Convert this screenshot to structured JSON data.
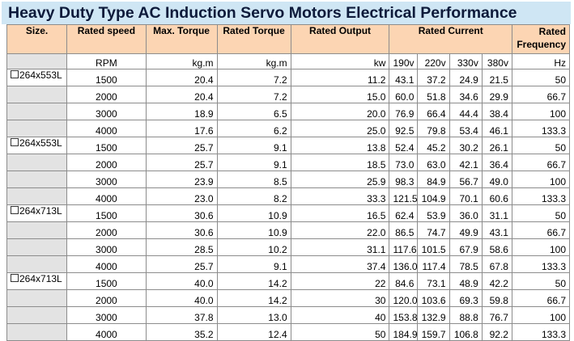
{
  "title": "Heavy Duty Type AC Induction Servo Motors Electrical Performance",
  "headers": {
    "size": "Size.",
    "speed": "Rated speed",
    "max_torque": "Max. Torque",
    "rated_torque": "Rated Torque",
    "output": "Rated Output",
    "current": "Rated Current",
    "frequency_line1": "Rated",
    "frequency_line2": "Frequency"
  },
  "units": {
    "speed": "RPM",
    "max_torque": "kg.m",
    "rated_torque": "kg.m",
    "output": "kw",
    "v190": "190v",
    "v220": "220v",
    "v330": "330v",
    "v380": "380v",
    "frequency": "Hz"
  },
  "rows": [
    {
      "size": "264x553L",
      "speed": "1500",
      "max_torque": "20.4",
      "rated_torque": "7.2",
      "output": "11.2",
      "c190": "43.1",
      "c220": "37.2",
      "c330": "24.9",
      "c380": "21.5",
      "freq": "50"
    },
    {
      "size": "",
      "speed": "2000",
      "max_torque": "20.4",
      "rated_torque": "7.2",
      "output": "15.0",
      "c190": "60.0",
      "c220": "51.8",
      "c330": "34.6",
      "c380": "29.9",
      "freq": "66.7"
    },
    {
      "size": "",
      "speed": "3000",
      "max_torque": "18.9",
      "rated_torque": "6.5",
      "output": "20.0",
      "c190": "76.9",
      "c220": "66.4",
      "c330": "44.4",
      "c380": "38.4",
      "freq": "100"
    },
    {
      "size": "",
      "speed": "4000",
      "max_torque": "17.6",
      "rated_torque": "6.2",
      "output": "25.0",
      "c190": "92.5",
      "c220": "79.8",
      "c330": "53.4",
      "c380": "46.1",
      "freq": "133.3"
    },
    {
      "size": "264x553L",
      "speed": "1500",
      "max_torque": "25.7",
      "rated_torque": "9.1",
      "output": "13.8",
      "c190": "52.4",
      "c220": "45.2",
      "c330": "30.2",
      "c380": "26.1",
      "freq": "50"
    },
    {
      "size": "",
      "speed": "2000",
      "max_torque": "25.7",
      "rated_torque": "9.1",
      "output": "18.5",
      "c190": "73.0",
      "c220": "63.0",
      "c330": "42.1",
      "c380": "36.4",
      "freq": "66.7"
    },
    {
      "size": "",
      "speed": "3000",
      "max_torque": "23.9",
      "rated_torque": "8.5",
      "output": "25.9",
      "c190": "98.3",
      "c220": "84.9",
      "c330": "56.7",
      "c380": "49.0",
      "freq": "100"
    },
    {
      "size": "",
      "speed": "4000",
      "max_torque": "23.0",
      "rated_torque": "8.2",
      "output": "33.3",
      "c190": "121.5",
      "c220": "104.9",
      "c330": "70.1",
      "c380": "60.6",
      "freq": "133.3"
    },
    {
      "size": "264x713L",
      "speed": "1500",
      "max_torque": "30.6",
      "rated_torque": "10.9",
      "output": "16.5",
      "c190": "62.4",
      "c220": "53.9",
      "c330": "36.0",
      "c380": "31.1",
      "freq": "50"
    },
    {
      "size": "",
      "speed": "2000",
      "max_torque": "30.6",
      "rated_torque": "10.9",
      "output": "22.0",
      "c190": "86.5",
      "c220": "74.7",
      "c330": "49.9",
      "c380": "43.1",
      "freq": "66.7"
    },
    {
      "size": "",
      "speed": "3000",
      "max_torque": "28.5",
      "rated_torque": "10.2",
      "output": "31.1",
      "c190": "117.6",
      "c220": "101.5",
      "c330": "67.9",
      "c380": "58.6",
      "freq": "100"
    },
    {
      "size": "",
      "speed": "4000",
      "max_torque": "25.7",
      "rated_torque": "9.1",
      "output": "37.4",
      "c190": "136.0",
      "c220": "117.4",
      "c330": "78.5",
      "c380": "67.8",
      "freq": "133.3"
    },
    {
      "size": "264x713L",
      "speed": "1500",
      "max_torque": "40.0",
      "rated_torque": "14.2",
      "output": "22",
      "c190": "84.6",
      "c220": "73.1",
      "c330": "48.9",
      "c380": "42.2",
      "freq": "50"
    },
    {
      "size": "",
      "speed": "2000",
      "max_torque": "40.0",
      "rated_torque": "14.2",
      "output": "30",
      "c190": "120.0",
      "c220": "103.6",
      "c330": "69.3",
      "c380": "59.8",
      "freq": "66.7"
    },
    {
      "size": "",
      "speed": "3000",
      "max_torque": "37.8",
      "rated_torque": "13.0",
      "output": "40",
      "c190": "153.8",
      "c220": "132.9",
      "c330": "88.8",
      "c380": "76.7",
      "freq": "100"
    },
    {
      "size": "",
      "speed": "4000",
      "max_torque": "35.2",
      "rated_torque": "12.4",
      "output": "50",
      "c190": "184.9",
      "c220": "159.7",
      "c330": "106.8",
      "c380": "92.2",
      "freq": "133.3"
    }
  ],
  "colors": {
    "title_bg": "#cfe6f4",
    "header_bg": "#fcd5b3",
    "size_placeholder_bg": "#e3e3e3",
    "title_text": "#0d1a3a"
  }
}
